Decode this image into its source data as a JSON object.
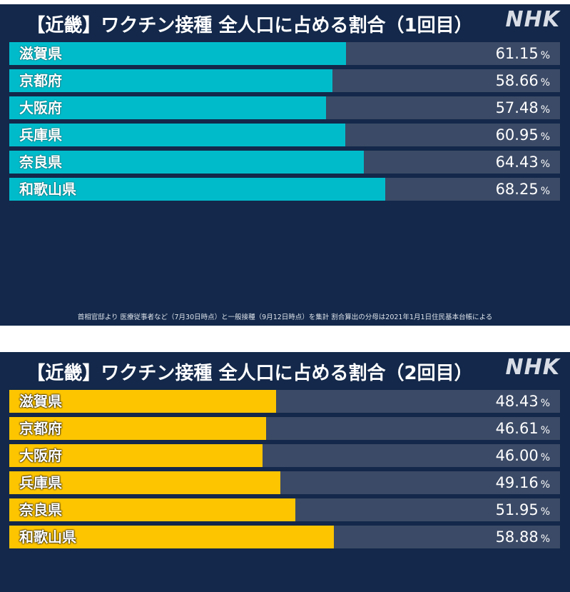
{
  "logo_text": "NHK",
  "unit": "%",
  "footnote": "首相官邸より 医療従事者など（7月30日時点）と一般接種（9月12日時点）を集計 割合算出の分母は2021年1月1日住民基本台帳による",
  "colors": {
    "background": "#13284a",
    "track": "#3b4a66",
    "first_dose_bar": "#00bccb",
    "second_dose_bar": "#fdc500",
    "text": "#ffffff"
  },
  "chart_data": [
    {
      "type": "bar",
      "orientation": "horizontal",
      "title": "【近畿】ワクチン接種 全人口に占める割合（1回目）",
      "categories": [
        "滋賀県",
        "京都府",
        "大阪府",
        "兵庫県",
        "奈良県",
        "和歌山県"
      ],
      "values": [
        61.15,
        58.66,
        57.48,
        60.95,
        64.43,
        68.25
      ],
      "value_labels": [
        "61.15",
        "58.66",
        "57.48",
        "60.95",
        "64.43",
        "68.25"
      ],
      "xlim": [
        0,
        100
      ],
      "grid": false,
      "legend": "none"
    },
    {
      "type": "bar",
      "orientation": "horizontal",
      "title": "【近畿】ワクチン接種 全人口に占める割合（2回目）",
      "categories": [
        "滋賀県",
        "京都府",
        "大阪府",
        "兵庫県",
        "奈良県",
        "和歌山県"
      ],
      "values": [
        48.43,
        46.61,
        46.0,
        49.16,
        51.95,
        58.88
      ],
      "value_labels": [
        "48.43",
        "46.61",
        "46.00",
        "49.16",
        "51.95",
        "58.88"
      ],
      "xlim": [
        0,
        100
      ],
      "grid": false,
      "legend": "none"
    }
  ]
}
